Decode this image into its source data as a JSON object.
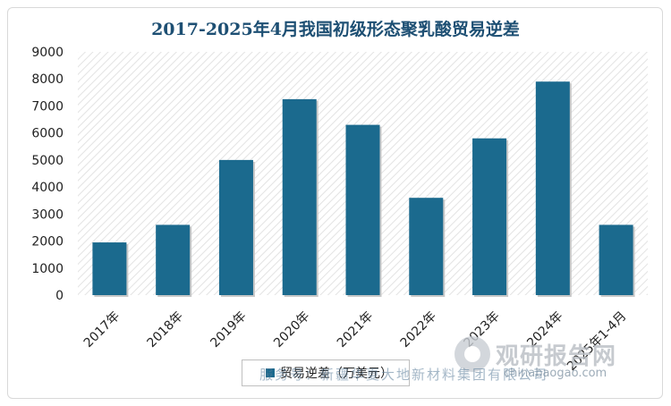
{
  "chart_data": {
    "type": "bar",
    "title": "2017-2025年4月我国初级形态聚乳酸贸易逆差",
    "categories": [
      "2017年",
      "2018年",
      "2019年",
      "2020年",
      "2021年",
      "2022年",
      "2023年",
      "2024年",
      "2025年1-4月"
    ],
    "series": [
      {
        "name": "贸易逆差（万美元）",
        "values": [
          1950,
          2600,
          5000,
          7250,
          6300,
          3600,
          5800,
          7900,
          2600
        ]
      }
    ],
    "ylim": [
      0,
      9000
    ],
    "yticks": [
      "0",
      "1000",
      "2000",
      "3000",
      "4000",
      "5000",
      "6000",
      "7000",
      "8000",
      "9000"
    ],
    "xlabel": "",
    "ylabel": "",
    "grid": false,
    "legend_position": "bottom",
    "colors": {
      "bar": "#1b6a8e",
      "plot_hatch": "#e3e3e3",
      "title": "#1d4f73"
    }
  },
  "watermark": {
    "text": "服务号：新疆华夏大地新材料集团有限公司",
    "brand": "观研报告网",
    "url": "chinabaogao.com"
  }
}
